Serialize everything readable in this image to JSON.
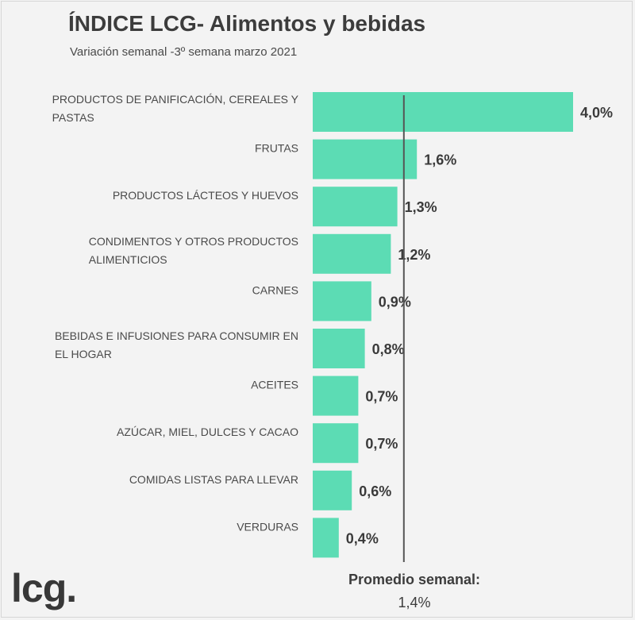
{
  "chart_data": {
    "type": "bar",
    "orientation": "horizontal",
    "title": "ÍNDICE LCG- Alimentos y bebidas",
    "subtitle": "Variación semanal -3º semana marzo 2021",
    "categories": [
      "PRODUCTOS DE PANIFICACIÓN, CEREALES Y PASTAS",
      "FRUTAS",
      "PRODUCTOS LÁCTEOS Y HUEVOS",
      "CONDIMENTOS Y OTROS PRODUCTOS ALIMENTICIOS",
      "CARNES",
      "BEBIDAS E INFUSIONES PARA CONSUMIR EN EL HOGAR",
      "ACEITES",
      "AZÚCAR, MIEL, DULCES Y CACAO",
      "COMIDAS LISTAS PARA LLEVAR",
      "VERDURAS"
    ],
    "category_lines": [
      [
        "PRODUCTOS DE PANIFICACIÓN, CEREALES Y",
        "PASTAS"
      ],
      [
        "FRUTAS"
      ],
      [
        "PRODUCTOS LÁCTEOS Y HUEVOS"
      ],
      [
        "CONDIMENTOS Y OTROS PRODUCTOS",
        "ALIMENTICIOS"
      ],
      [
        "CARNES"
      ],
      [
        "BEBIDAS E INFUSIONES PARA CONSUMIR EN",
        "EL HOGAR"
      ],
      [
        "ACEITES"
      ],
      [
        "AZÚCAR, MIEL, DULCES Y CACAO"
      ],
      [
        "COMIDAS LISTAS PARA LLEVAR"
      ],
      [
        "VERDURAS"
      ]
    ],
    "values": [
      4.0,
      1.6,
      1.3,
      1.2,
      0.9,
      0.8,
      0.7,
      0.7,
      0.6,
      0.4
    ],
    "value_labels": [
      "4,0%",
      "1,6%",
      "1,3%",
      "1,2%",
      "0,9%",
      "0,8%",
      "0,7%",
      "0,7%",
      "0,6%",
      "0,4%"
    ],
    "reference_line": {
      "value": 1.4,
      "label": "Promedio semanal:",
      "value_label": "1,4%"
    },
    "bar_color": "#5cdcb4",
    "reference_color": "#555555",
    "xlim": [
      0,
      4.0
    ],
    "grid": false,
    "legend": "none"
  },
  "brand": {
    "logo_text": "lcg."
  }
}
